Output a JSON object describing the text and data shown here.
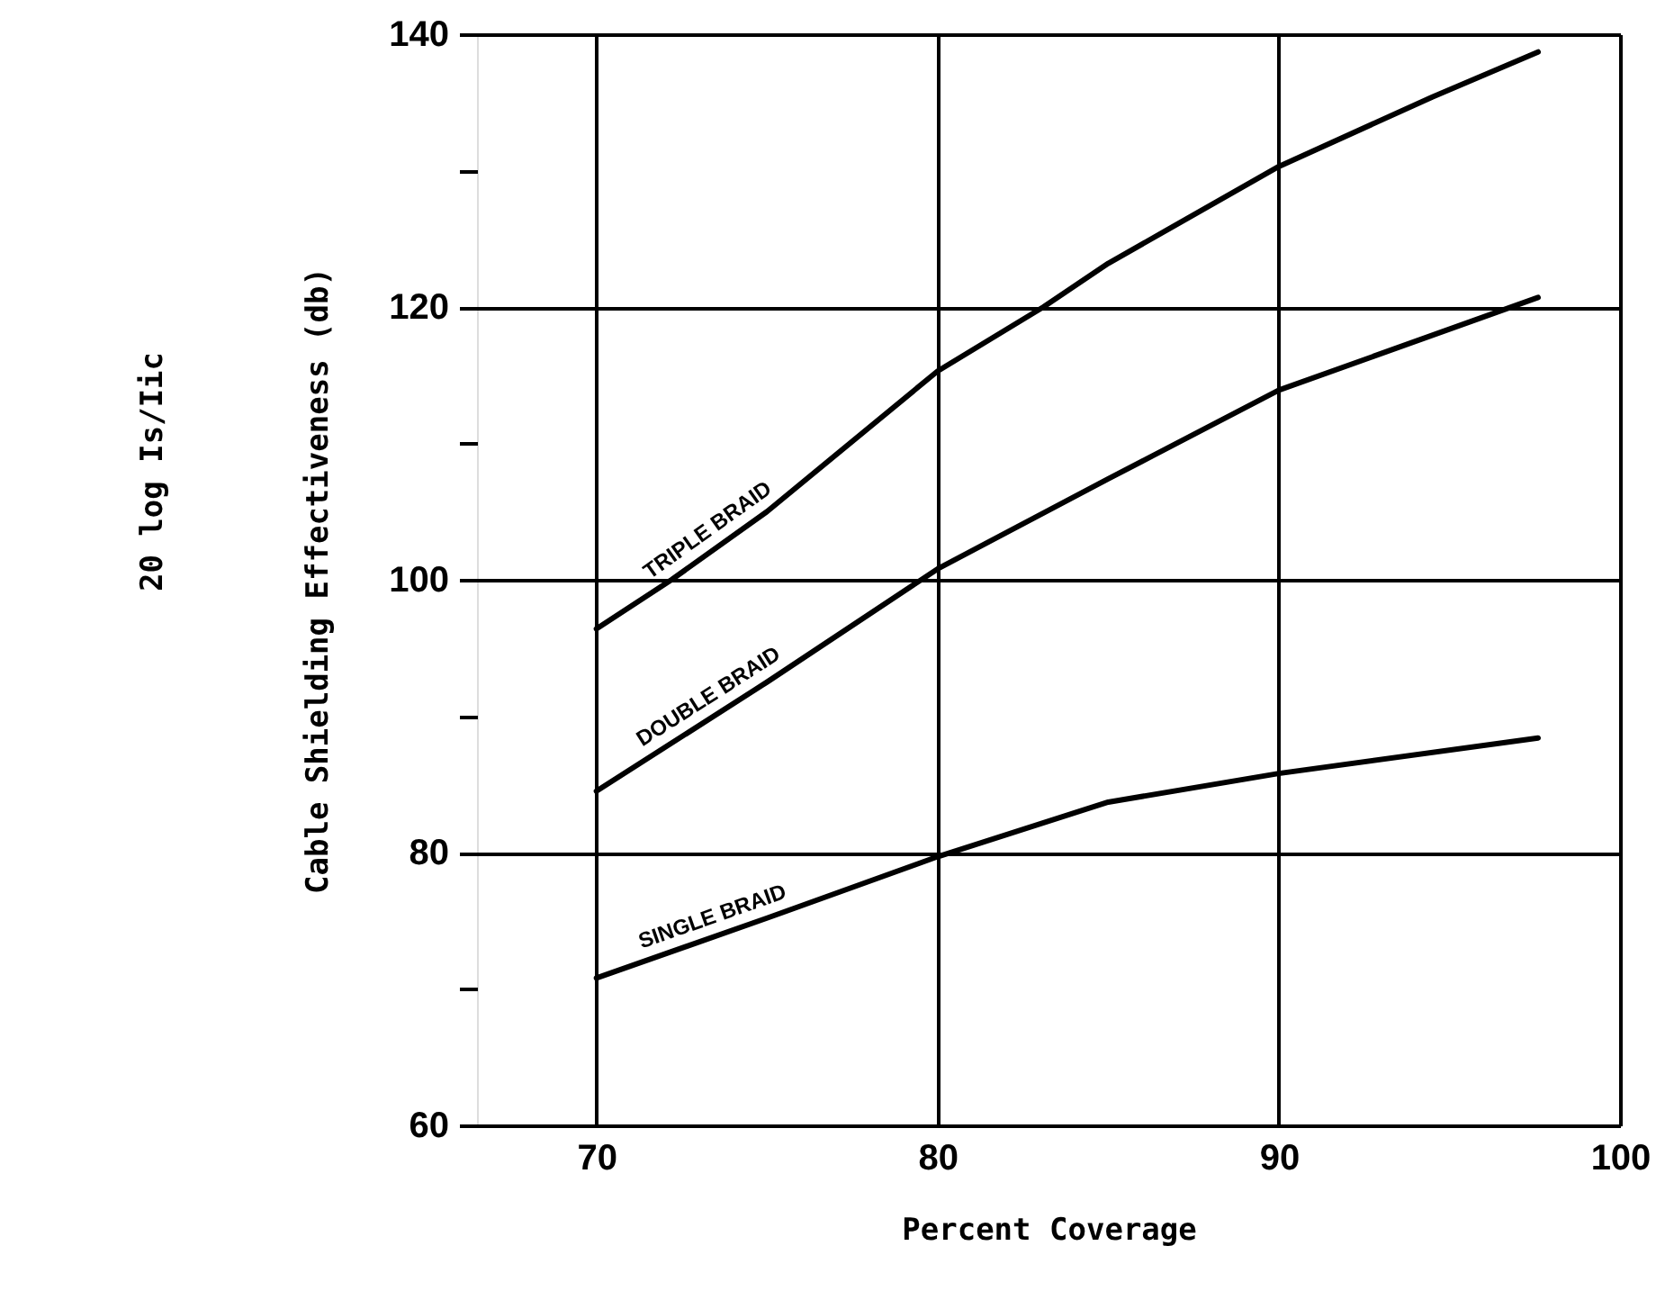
{
  "chart_data": {
    "type": "line",
    "xlabel": "Percent Coverage",
    "ylabel": "Cable Shielding Effectiveness (db)",
    "annotations": [
      "20 log Is/Iic"
    ],
    "series": [
      {
        "name": "TRIPLE BRAID",
        "color": "#000000",
        "x": [
          70,
          72.2,
          75,
          80,
          83.1,
          85,
          90,
          94.5,
          97.6
        ],
        "values": [
          96.4,
          100,
          105,
          115.3,
          120,
          123.2,
          130.3,
          135.4,
          138.7
        ]
      },
      {
        "name": "DOUBLE BRAID",
        "color": "#000000",
        "x": [
          70,
          75,
          80,
          85,
          90,
          97.6
        ],
        "values": [
          84.5,
          92.5,
          100.8,
          107.4,
          113.9,
          120.7
        ]
      },
      {
        "name": "SINGLE BRAID",
        "color": "#000000",
        "x": [
          70,
          75,
          80,
          85,
          90,
          97.6
        ],
        "values": [
          70.8,
          75.2,
          79.7,
          83.7,
          85.8,
          88.4
        ]
      }
    ],
    "xlim": [
      66.5,
      100
    ],
    "xticks": [
      70,
      80,
      90,
      100
    ],
    "ylim": [
      60,
      140
    ],
    "yticks": [
      60,
      {
        "value": 70,
        "label": null
      },
      80,
      {
        "value": 90,
        "label": null
      },
      100,
      {
        "value": 110,
        "label": null
      },
      120,
      {
        "value": 130,
        "label": null
      },
      140
    ],
    "grid": true,
    "legend": false,
    "marker": "none",
    "line_style": "solid"
  }
}
